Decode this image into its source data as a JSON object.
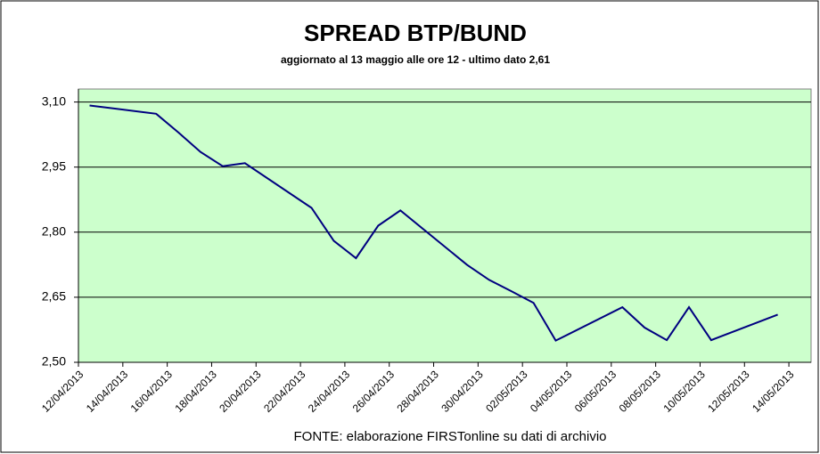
{
  "chart_data": {
    "type": "line",
    "title": "SPREAD  BTP/BUND",
    "subtitle": "aggiornato al 13 maggio alle ore 12 - ultimo dato 2,61",
    "source": "FONTE: elaborazione FIRSTonline su dati di archivio",
    "x": [
      "12/04/2013",
      "15/04/2013",
      "16/04/2013",
      "17/04/2013",
      "18/04/2013",
      "19/04/2013",
      "22/04/2013",
      "23/04/2013",
      "24/04/2013",
      "25/04/2013",
      "26/04/2013",
      "29/04/2013",
      "30/04/2013",
      "01/05/2013",
      "02/05/2013",
      "03/05/2013",
      "06/05/2013",
      "07/05/2013",
      "08/05/2013",
      "09/05/2013",
      "10/05/2013",
      "13/05/2013"
    ],
    "series": [
      {
        "name": "Spread",
        "color": "#000080",
        "values": [
          3.092,
          3.073,
          3.03,
          2.985,
          2.952,
          2.959,
          2.856,
          2.78,
          2.74,
          2.815,
          2.85,
          2.725,
          2.69,
          2.664,
          2.637,
          2.55,
          2.627,
          2.58,
          2.551,
          2.627,
          2.551,
          2.61
        ]
      }
    ],
    "xlim": [
      "12/04/2013",
      "15/05/2013"
    ],
    "xticks": [
      "12/04/2013",
      "14/04/2013",
      "16/04/2013",
      "18/04/2013",
      "20/04/2013",
      "22/04/2013",
      "24/04/2013",
      "26/04/2013",
      "28/04/2013",
      "30/04/2013",
      "02/05/2013",
      "04/05/2013",
      "06/05/2013",
      "08/05/2013",
      "10/05/2013",
      "12/05/2013",
      "14/05/2013"
    ],
    "ylim": [
      2.5,
      3.13
    ],
    "yticks": [
      {
        "value": 2.5,
        "label": "2,50"
      },
      {
        "value": 2.65,
        "label": "2,65"
      },
      {
        "value": 2.8,
        "label": "2,80"
      },
      {
        "value": 2.95,
        "label": "2,95"
      },
      {
        "value": 3.1,
        "label": "3,10"
      }
    ],
    "grid": true,
    "plot_background": "#ccffcc"
  }
}
